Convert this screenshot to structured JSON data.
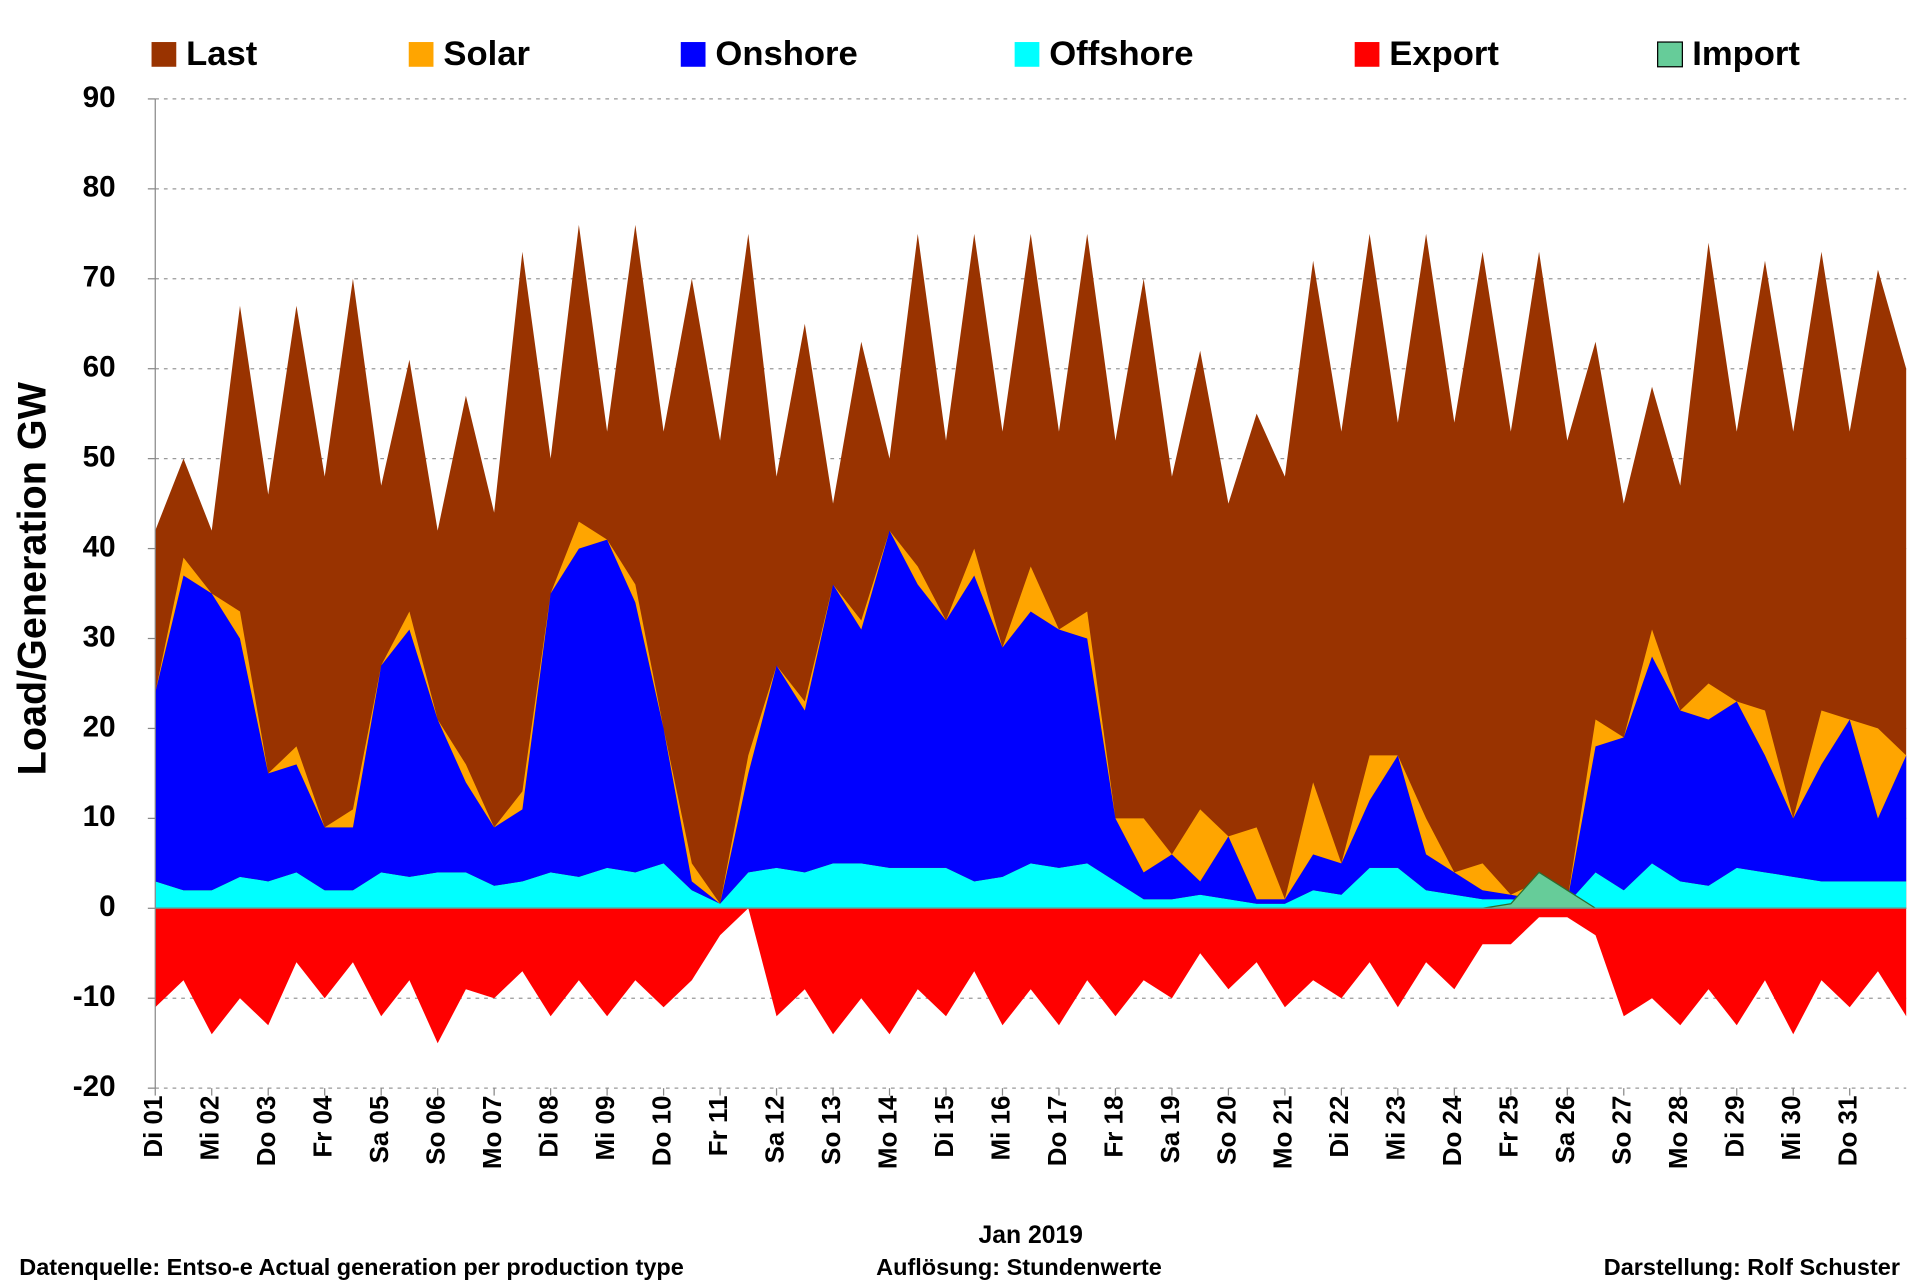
{
  "chart_data": {
    "type": "area",
    "x_label": "Jan 2019",
    "y_label": "Load/Generation  GW",
    "footer": [
      "Datenquelle: Entso-e  Actual generation per production type",
      "Auflösung: Stundenwerte",
      "Darstellung:  Rolf Schuster"
    ],
    "x": [
      0,
      0.5,
      1,
      1.5,
      2,
      2.5,
      3,
      3.5,
      4,
      4.5,
      5,
      5.5,
      6,
      6.5,
      7,
      7.5,
      8,
      8.5,
      9,
      9.5,
      10,
      10.5,
      11,
      11.5,
      12,
      12.5,
      13,
      13.5,
      14,
      14.5,
      15,
      15.5,
      16,
      16.5,
      17,
      17.5,
      18,
      18.5,
      19,
      19.5,
      20,
      20.5,
      21,
      21.5,
      22,
      22.5,
      23,
      23.5,
      24,
      24.5,
      25,
      25.5,
      26,
      26.5,
      27,
      27.5,
      28,
      28.5,
      29,
      29.5,
      30,
      30.5,
      31
    ],
    "xlim": [
      0,
      31
    ],
    "xticks": [
      {
        "value": 0,
        "label": "Di 01"
      },
      {
        "value": 1,
        "label": "Mi 02"
      },
      {
        "value": 2,
        "label": "Do 03"
      },
      {
        "value": 3,
        "label": "Fr 04"
      },
      {
        "value": 4,
        "label": "Sa 05"
      },
      {
        "value": 5,
        "label": "So 06"
      },
      {
        "value": 6,
        "label": "Mo 07"
      },
      {
        "value": 7,
        "label": "Di 08"
      },
      {
        "value": 8,
        "label": "Mi 09"
      },
      {
        "value": 9,
        "label": "Do 10"
      },
      {
        "value": 10,
        "label": "Fr 11"
      },
      {
        "value": 11,
        "label": "Sa 12"
      },
      {
        "value": 12,
        "label": "So 13"
      },
      {
        "value": 13,
        "label": "Mo 14"
      },
      {
        "value": 14,
        "label": "Di 15"
      },
      {
        "value": 15,
        "label": "Mi 16"
      },
      {
        "value": 16,
        "label": "Do 17"
      },
      {
        "value": 17,
        "label": "Fr 18"
      },
      {
        "value": 18,
        "label": "Sa 19"
      },
      {
        "value": 19,
        "label": "So 20"
      },
      {
        "value": 20,
        "label": "Mo 21"
      },
      {
        "value": 21,
        "label": "Di 22"
      },
      {
        "value": 22,
        "label": "Mi 23"
      },
      {
        "value": 23,
        "label": "Do 24"
      },
      {
        "value": 24,
        "label": "Fr 25"
      },
      {
        "value": 25,
        "label": "Sa 26"
      },
      {
        "value": 26,
        "label": "So 27"
      },
      {
        "value": 27,
        "label": "Mo 28"
      },
      {
        "value": 28,
        "label": "Di 29"
      },
      {
        "value": 29,
        "label": "Mi 30"
      },
      {
        "value": 30,
        "label": "Do 31"
      }
    ],
    "ylim": [
      -20,
      90
    ],
    "yticks": [
      -20,
      -10,
      0,
      10,
      20,
      30,
      40,
      50,
      60,
      70,
      80,
      90
    ],
    "negative_tick_color": "#ff0000",
    "grid": true,
    "legend": "top",
    "series": [
      {
        "name": "Last",
        "color": "#993300",
        "values": [
          42,
          50,
          42,
          67,
          46,
          67,
          48,
          70,
          47,
          61,
          42,
          57,
          44,
          73,
          50,
          76,
          53,
          76,
          53,
          70,
          52,
          75,
          48,
          65,
          45,
          63,
          50,
          75,
          52,
          75,
          53,
          75,
          53,
          75,
          52,
          70,
          48,
          62,
          45,
          55,
          48,
          72,
          53,
          75,
          54,
          75,
          54,
          73,
          53,
          73,
          52,
          63,
          45,
          58,
          47,
          74,
          53,
          72,
          53,
          73,
          53,
          71,
          60
        ]
      },
      {
        "name": "Solar",
        "color": "#ffa500",
        "values": [
          0,
          2,
          0,
          3,
          0,
          2,
          0,
          2,
          0,
          2,
          0,
          2,
          0,
          2,
          0,
          3,
          0,
          2,
          0,
          2,
          0,
          2,
          0,
          1,
          0,
          1,
          0,
          2,
          0,
          3,
          0,
          5,
          0,
          3,
          0,
          6,
          0,
          8,
          0,
          8,
          0,
          8,
          0,
          5,
          0,
          4,
          0,
          3,
          0,
          2,
          0,
          3,
          0,
          3,
          0,
          4,
          0,
          5,
          0,
          6,
          0,
          10,
          0
        ]
      },
      {
        "name": "Onshore",
        "color": "#0000ff",
        "values": [
          21,
          35,
          33,
          26.5,
          12,
          12,
          7,
          7,
          23,
          27.5,
          17,
          10,
          6.5,
          8,
          31,
          36.5,
          36.5,
          30,
          15,
          1,
          0,
          11,
          22.5,
          18,
          31,
          26,
          37.5,
          31.5,
          27.5,
          34,
          25.5,
          28,
          26.5,
          25,
          7,
          3,
          5,
          1.5,
          7,
          0.5,
          0.5,
          4,
          3.5,
          7.5,
          12.5,
          4,
          2.5,
          1,
          0.5,
          0.2,
          0.3,
          14,
          17,
          23,
          19,
          18.5,
          18.5,
          13,
          6.5,
          13,
          18,
          7,
          14
        ]
      },
      {
        "name": "Offshore",
        "color": "#00ffff",
        "values": [
          3,
          2,
          2,
          3.5,
          3,
          4,
          2,
          2,
          4,
          3.5,
          4,
          4,
          2.5,
          3,
          4,
          3.5,
          4.5,
          4,
          5,
          2,
          0.5,
          4,
          4.5,
          4,
          5,
          5,
          4.5,
          4.5,
          4.5,
          3,
          3.5,
          5,
          4.5,
          5,
          3,
          1,
          1,
          1.5,
          1,
          0.5,
          0.5,
          2,
          1.5,
          4.5,
          4.5,
          2,
          1.5,
          1,
          1,
          0.8,
          0.5,
          4,
          2,
          5,
          3,
          2.5,
          4.5,
          4,
          3.5,
          3,
          3,
          3,
          3
        ]
      },
      {
        "name": "Export",
        "color": "#ff0000",
        "values": [
          -11,
          -8,
          -14,
          -10,
          -13,
          -6,
          -10,
          -6,
          -12,
          -8,
          -15,
          -9,
          -10,
          -7,
          -12,
          -8,
          -12,
          -8,
          -11,
          -8,
          -3,
          0,
          -12,
          -9,
          -14,
          -10,
          -14,
          -9,
          -12,
          -7,
          -13,
          -9,
          -13,
          -8,
          -12,
          -8,
          -10,
          -5,
          -9,
          -6,
          -11,
          -8,
          -10,
          -6,
          -11,
          -6,
          -9,
          -4,
          -4,
          -1,
          -1,
          -3,
          -12,
          -10,
          -13,
          -9,
          -13,
          -8,
          -14,
          -8,
          -11,
          -7,
          -12
        ]
      },
      {
        "name": "Import",
        "color": "#66cc99",
        "values": [
          0,
          0,
          0,
          0,
          0,
          0,
          0,
          0,
          0,
          0,
          0,
          0,
          0,
          0,
          0,
          0,
          0,
          0,
          0,
          0,
          0,
          0,
          0,
          0,
          0,
          0,
          0,
          0,
          0,
          0,
          0,
          0,
          0,
          0,
          0,
          0,
          0,
          0,
          0,
          0,
          0,
          0,
          0,
          0,
          0,
          0,
          0,
          0,
          0.5,
          4,
          2,
          0,
          0,
          0,
          0,
          0,
          0,
          0,
          0,
          0,
          0,
          0,
          0
        ]
      }
    ]
  }
}
